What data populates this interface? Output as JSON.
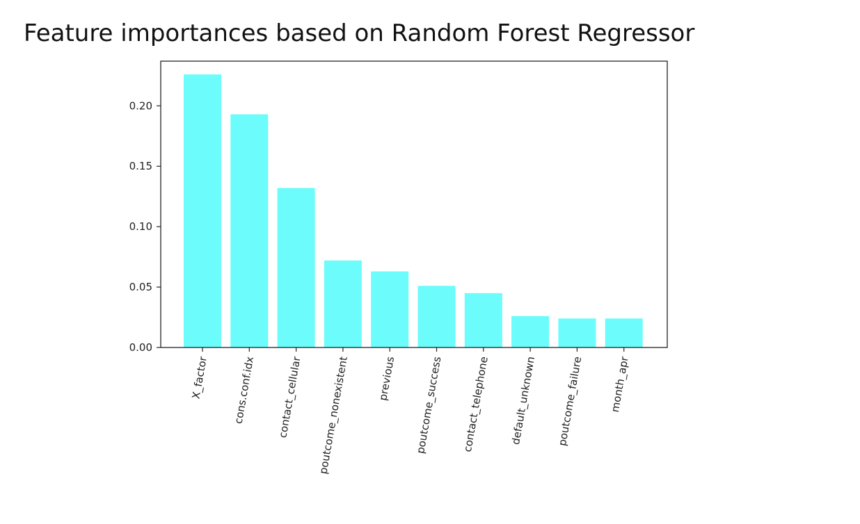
{
  "chart_data": {
    "type": "bar",
    "title": "Feature importances based on Random Forest Regressor",
    "xlabel": "",
    "ylabel": "",
    "categories": [
      "X_factor",
      "cons.conf.idx",
      "contact_cellular",
      "poutcome_nonexistent",
      "previous",
      "poutcome_success",
      "contact_telephone",
      "default_unknown",
      "poutcome_failure",
      "month_apr"
    ],
    "values": [
      0.226,
      0.193,
      0.132,
      0.072,
      0.063,
      0.051,
      0.045,
      0.026,
      0.024,
      0.024
    ],
    "ylim": [
      0,
      0.237
    ],
    "yticks": [
      "0.00",
      "0.05",
      "0.10",
      "0.15",
      "0.20"
    ],
    "bar_color": "#6cfcfc",
    "grid": false,
    "legend": "none"
  }
}
